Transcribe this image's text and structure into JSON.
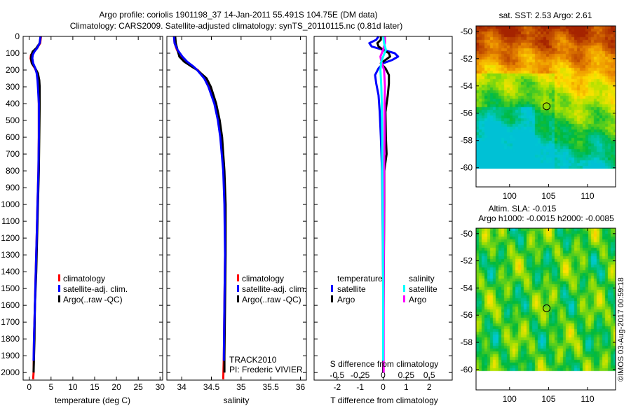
{
  "header": {
    "title_line1": "Argo profile: coriolis 1901198_37 14-Jan-2011 55.491S 104.75E (DM data)",
    "title_line2": "Climatology: CARS2009. Satellite-adjusted climatology: synTS_20110115.nc (0.81d later)"
  },
  "colors": {
    "climatology": "#ff0000",
    "satellite": "#0000ff",
    "argo": "#000000",
    "sal_satellite": "#00ffff",
    "sal_argo": "#ff00ff"
  },
  "chart_data": [
    {
      "type": "line",
      "id": "temperature",
      "xlabel": "temperature (deg C)",
      "ylabel": "",
      "xlim": [
        -1.4,
        30.6
      ],
      "ylim": [
        2045,
        0
      ],
      "xticks": [
        0,
        5,
        10,
        15,
        20,
        25,
        30
      ],
      "yticks": [
        0,
        100,
        200,
        300,
        400,
        500,
        600,
        700,
        800,
        900,
        1000,
        1100,
        1200,
        1300,
        1400,
        1500,
        1600,
        1700,
        1800,
        1900,
        2000
      ],
      "legend": [
        "climatology",
        "satellite-adj. clim.",
        "Argo(..raw -QC)"
      ],
      "series": [
        {
          "name": "climatology",
          "color": "#ff0000",
          "depth": [
            0,
            40,
            70,
            90,
            110,
            130,
            160,
            190,
            220,
            260,
            300,
            400,
            600,
            800,
            1000,
            1200,
            1400,
            1600,
            1800,
            2000,
            2040
          ],
          "values": [
            2.7,
            2.5,
            1.8,
            1.0,
            0.4,
            0.3,
            0.6,
            1.3,
            1.8,
            2.0,
            2.1,
            2.2,
            2.2,
            2.1,
            1.9,
            1.7,
            1.5,
            1.3,
            1.1,
            1.0,
            0.9
          ]
        },
        {
          "name": "Argo",
          "color": "#000000",
          "depth": [
            0,
            40,
            70,
            90,
            110,
            130,
            160,
            190,
            220,
            260,
            300,
            400,
            600,
            800,
            1000,
            1200,
            1400,
            1600,
            1800,
            2000
          ],
          "values": [
            2.6,
            2.4,
            1.6,
            0.8,
            0.5,
            0.4,
            0.6,
            1.4,
            2.0,
            2.3,
            2.4,
            2.4,
            2.3,
            2.2,
            2.0,
            1.8,
            1.6,
            1.3,
            1.2,
            1.0
          ]
        },
        {
          "name": "satellite-adj. clim.",
          "color": "#0000ff",
          "depth": [
            0,
            40,
            70,
            90,
            110,
            130,
            160,
            190,
            220,
            260,
            300,
            400,
            600,
            800,
            1000,
            1200,
            1400,
            1600,
            1800,
            1930
          ],
          "values": [
            2.6,
            2.4,
            1.8,
            1.2,
            0.8,
            0.7,
            0.9,
            1.4,
            1.7,
            1.9,
            2.0,
            2.2,
            2.2,
            2.1,
            1.9,
            1.7,
            1.5,
            1.3,
            1.1,
            1.0
          ]
        }
      ]
    },
    {
      "type": "line",
      "id": "salinity",
      "xlabel": "salinity",
      "xlim": [
        33.75,
        36.1
      ],
      "ylim": [
        2045,
        0
      ],
      "xticks": [
        "34",
        "34.5",
        "35",
        "35.5",
        "36"
      ],
      "legend": [
        "climatology",
        "satellite-adj. clim.",
        "Argo(..raw -QC)"
      ],
      "annotation": [
        "TRACK2010",
        "PI: Frederic VIVIER"
      ],
      "series": [
        {
          "name": "climatology",
          "color": "#ff0000",
          "depth": [
            0,
            40,
            80,
            120,
            150,
            180,
            200,
            250,
            300,
            400,
            500,
            600,
            800,
            1000,
            1300,
            1600,
            1900,
            2040
          ],
          "values": [
            33.87,
            33.88,
            33.92,
            33.98,
            34.05,
            34.18,
            34.27,
            34.4,
            34.47,
            34.56,
            34.62,
            34.66,
            34.71,
            34.73,
            34.73,
            34.72,
            34.71,
            34.7
          ]
        },
        {
          "name": "Argo",
          "color": "#000000",
          "depth": [
            0,
            40,
            80,
            120,
            150,
            180,
            200,
            250,
            300,
            400,
            500,
            600,
            800,
            1000,
            1300,
            1600,
            1900,
            2000
          ],
          "values": [
            33.89,
            33.9,
            33.93,
            33.96,
            34.04,
            34.17,
            34.26,
            34.42,
            34.49,
            34.58,
            34.64,
            34.68,
            34.72,
            34.74,
            34.74,
            34.73,
            34.72,
            34.72
          ]
        },
        {
          "name": "satellite-adj. clim.",
          "color": "#0000ff",
          "depth": [
            0,
            40,
            80,
            120,
            150,
            180,
            200,
            250,
            300,
            400,
            500,
            600,
            800,
            1000,
            1300,
            1600,
            1900,
            1930
          ],
          "values": [
            33.87,
            33.88,
            33.93,
            34.01,
            34.09,
            34.2,
            34.26,
            34.38,
            34.45,
            34.55,
            34.61,
            34.65,
            34.7,
            34.72,
            34.73,
            34.72,
            34.71,
            34.71
          ]
        }
      ]
    },
    {
      "type": "line",
      "id": "differences",
      "xlabel": "T difference from climatology",
      "xlabel_top": "S difference from climatology",
      "xlim": [
        -3,
        3
      ],
      "xticks": [
        "-2",
        "-1",
        "0",
        "1",
        "2"
      ],
      "xticks_s": [
        "-0.5",
        "-0.25",
        "0",
        "0.25",
        "0.5"
      ],
      "s_to_t_scale": 4,
      "legend": {
        "temperature_title": "temperature",
        "salinity_title": "salinity",
        "t_sat": "satellite",
        "t_argo": "Argo",
        "s_sat": "satellite",
        "s_argo": "Argo"
      },
      "series": [
        {
          "name": "T satellite",
          "color": "#0000ff",
          "kind": "T",
          "depth": [
            0,
            20,
            40,
            60,
            80,
            100,
            120,
            140,
            160,
            190,
            230,
            280,
            350,
            450,
            600,
            800,
            1000,
            1500,
            1930
          ],
          "values": [
            -0.2,
            -0.3,
            -0.6,
            -0.5,
            0.0,
            0.5,
            0.65,
            0.4,
            0.0,
            -0.2,
            -0.35,
            -0.3,
            -0.2,
            -0.15,
            -0.1,
            -0.05,
            -0.03,
            0.0,
            0.0
          ]
        },
        {
          "name": "T Argo",
          "color": "#000000",
          "kind": "T",
          "depth": [
            0,
            20,
            40,
            60,
            80,
            100,
            120,
            140,
            160,
            190,
            230,
            280,
            350,
            450,
            600,
            700,
            800,
            1000,
            1500,
            2000
          ],
          "values": [
            -0.1,
            -0.1,
            -0.25,
            -0.2,
            0.0,
            0.25,
            0.3,
            0.1,
            -0.1,
            0.1,
            0.25,
            0.25,
            0.2,
            0.1,
            0.12,
            0.15,
            0.05,
            0.05,
            0.02,
            0.0
          ]
        },
        {
          "name": "S Argo",
          "color": "#ff00ff",
          "kind": "S",
          "depth": [
            0,
            40,
            80,
            120,
            150,
            200,
            300,
            400,
            600,
            800,
            1000,
            1500,
            2000
          ],
          "values": [
            0.02,
            0.02,
            0.0,
            -0.03,
            -0.02,
            0.01,
            0.02,
            0.015,
            0.015,
            0.01,
            0.01,
            0.005,
            0.005
          ]
        },
        {
          "name": "S satellite",
          "color": "#00ffff",
          "kind": "S",
          "depth": [
            0,
            40,
            80,
            120,
            150,
            200,
            300,
            400,
            600,
            800,
            1000,
            1500,
            1930
          ],
          "values": [
            0.0,
            0.01,
            0.03,
            0.0,
            -0.02,
            -0.03,
            -0.02,
            -0.015,
            -0.01,
            -0.008,
            -0.005,
            0.0,
            0.0
          ]
        }
      ]
    },
    {
      "type": "heatmap",
      "id": "sst-map",
      "title": "sat. SST: 2.53 Argo: 2.61",
      "xlim": [
        95.7,
        113.6
      ],
      "ylim": [
        -61.4,
        -49.6
      ],
      "data_lat_range": [
        -60,
        -49.6
      ],
      "xticks": [
        "100",
        "105",
        "110"
      ],
      "yticks": [
        "-50",
        "-52",
        "-54",
        "-56",
        "-58",
        "-60"
      ],
      "argo_position": {
        "lon": 104.75,
        "lat": -55.491
      }
    },
    {
      "type": "heatmap",
      "id": "sla-map",
      "title_line1": "Altim. SLA: -0.015",
      "title_line2": "Argo h1000: -0.0015 h2000: -0.0085",
      "xlim": [
        95.7,
        113.6
      ],
      "ylim": [
        -61.5,
        -49.6
      ],
      "data_lat_range": [
        -60,
        -49.6
      ],
      "xticks": [
        "100",
        "105",
        "110"
      ],
      "yticks": [
        "-50",
        "-52",
        "-54",
        "-56",
        "-58",
        "-60"
      ],
      "argo_position": {
        "lon": 104.75,
        "lat": -55.491
      }
    }
  ],
  "footer": {
    "credit": "©IMOS 03-Aug-2017 00:59:18"
  }
}
